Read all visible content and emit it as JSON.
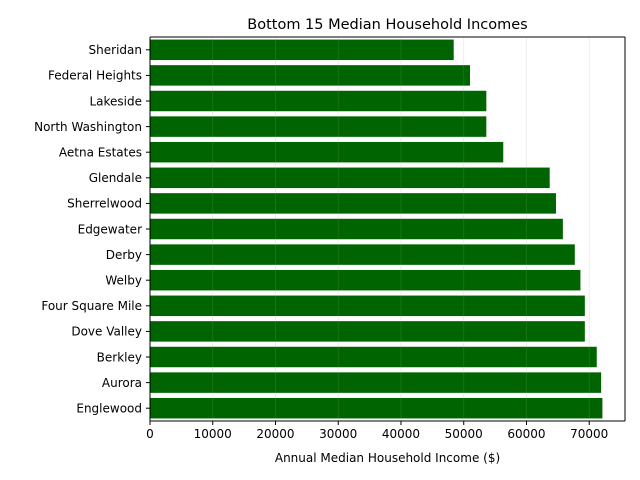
{
  "chart_data": {
    "type": "bar",
    "orientation": "horizontal",
    "title": "Bottom 15 Median Household Incomes",
    "xlabel": "Annual Median Household Income ($)",
    "ylabel": "",
    "categories": [
      "Sheridan",
      "Federal Heights",
      "Lakeside",
      "North Washington",
      "Aetna Estates",
      "Glendale",
      "Sherrelwood",
      "Edgewater",
      "Derby",
      "Welby",
      "Four Square Mile",
      "Dove Valley",
      "Berkley",
      "Aurora",
      "Englewood"
    ],
    "values": [
      48400,
      51000,
      53600,
      53600,
      56300,
      63700,
      64700,
      65800,
      67700,
      68600,
      69300,
      69300,
      71200,
      71900,
      72100
    ],
    "xlim": [
      0,
      75700
    ],
    "xticks": [
      0,
      10000,
      20000,
      30000,
      40000,
      50000,
      60000,
      70000
    ],
    "xtick_labels": [
      "0",
      "10000",
      "20000",
      "30000",
      "40000",
      "50000",
      "60000",
      "70000"
    ],
    "grid": "vertical",
    "bar_color": "#006400"
  }
}
